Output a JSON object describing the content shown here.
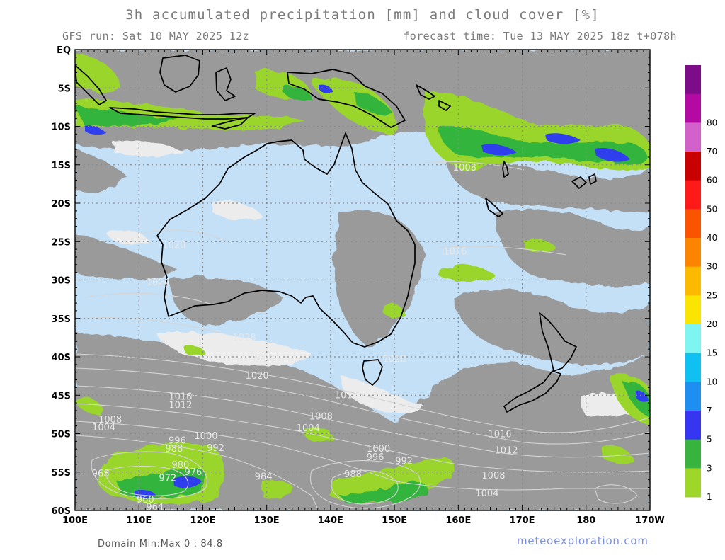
{
  "header": {
    "title": "3h accumulated precipitation [mm] and cloud cover [%]",
    "run": "GFS run: Sat 10 MAY 2025 12z",
    "forecast": "forecast time: Tue 13 MAY 2025 18z  t+078h"
  },
  "map": {
    "lat_labels": [
      "EQ",
      "5S",
      "10S",
      "15S",
      "20S",
      "25S",
      "30S",
      "35S",
      "40S",
      "45S",
      "50S",
      "55S",
      "60S"
    ],
    "lon_labels": [
      "100E",
      "110E",
      "120E",
      "130E",
      "140E",
      "150E",
      "160E",
      "170E",
      "180",
      "170W"
    ],
    "colors": {
      "ocean": "#c4e0f7",
      "cloud": "#9a9a9a",
      "cloud_light": "#ececec",
      "coast": "#000000",
      "isobar": "#d4d4d4",
      "rain_1": "#99d52a",
      "rain_3": "#33b43c",
      "rain_7": "#2f3fee"
    },
    "isobar_labels": [
      {
        "text": "1024",
        "lon": 113,
        "lat": -30.3
      },
      {
        "text": "1020",
        "lon": 115.5,
        "lat": -25.5
      },
      {
        "text": "1028",
        "lon": 126.5,
        "lat": -37.5
      },
      {
        "text": "1024",
        "lon": 129.5,
        "lat": -40.3
      },
      {
        "text": "1020",
        "lon": 128.5,
        "lat": -42.5
      },
      {
        "text": "1020",
        "lon": 150,
        "lat": -40.3
      },
      {
        "text": "1016",
        "lon": 116.5,
        "lat": -45.2
      },
      {
        "text": "1012",
        "lon": 116.5,
        "lat": -46.3
      },
      {
        "text": "1012",
        "lon": 142.5,
        "lat": -45
      },
      {
        "text": "1008",
        "lon": 105.5,
        "lat": -48.2
      },
      {
        "text": "1008",
        "lon": 138.5,
        "lat": -47.8
      },
      {
        "text": "1004",
        "lon": 104.5,
        "lat": -49.2
      },
      {
        "text": "1004",
        "lon": 136.5,
        "lat": -49.3
      },
      {
        "text": "1000",
        "lon": 120.5,
        "lat": -50.3
      },
      {
        "text": "1000",
        "lon": 147.5,
        "lat": -52
      },
      {
        "text": "996",
        "lon": 116,
        "lat": -50.9
      },
      {
        "text": "996",
        "lon": 147,
        "lat": -53.1
      },
      {
        "text": "992",
        "lon": 122,
        "lat": -51.9
      },
      {
        "text": "992",
        "lon": 151.5,
        "lat": -53.6
      },
      {
        "text": "988",
        "lon": 115.5,
        "lat": -52
      },
      {
        "text": "988",
        "lon": 143.5,
        "lat": -55.3
      },
      {
        "text": "984",
        "lon": 129.5,
        "lat": -55.6
      },
      {
        "text": "980",
        "lon": 116.5,
        "lat": -54.1
      },
      {
        "text": "976",
        "lon": 118.5,
        "lat": -55
      },
      {
        "text": "972",
        "lon": 114.5,
        "lat": -55.8
      },
      {
        "text": "968",
        "lon": 104,
        "lat": -55.2
      },
      {
        "text": "964",
        "lon": 112.5,
        "lat": -59.6
      },
      {
        "text": "960",
        "lon": 111,
        "lat": -58.6
      },
      {
        "text": "1016",
        "lon": 166.5,
        "lat": -50.1
      },
      {
        "text": "1012",
        "lon": 167.5,
        "lat": -52.2
      },
      {
        "text": "1008",
        "lon": 165.5,
        "lat": -55.5
      },
      {
        "text": "1004",
        "lon": 164.5,
        "lat": -57.8
      },
      {
        "text": "1008",
        "lon": 161,
        "lat": -15.4
      },
      {
        "text": "1016",
        "lon": 159.5,
        "lat": -26.3
      }
    ]
  },
  "legend": {
    "levels": [
      "1",
      "3",
      "5",
      "7",
      "10",
      "15",
      "20",
      "25",
      "30",
      "40",
      "50",
      "60",
      "70",
      "80"
    ],
    "colors": [
      "#9fd62a",
      "#38b33e",
      "#3636f2",
      "#1e8ff0",
      "#10c0f0",
      "#7ff5f2",
      "#fae500",
      "#fbb900",
      "#fb8400",
      "#fb5400",
      "#ff1a1a",
      "#c80000",
      "#d261c9",
      "#b20aa3",
      "#7d0c88"
    ]
  },
  "footer": {
    "minmax": "Domain Min:Max 0 : 84.8",
    "site": "meteoexploration.com"
  }
}
